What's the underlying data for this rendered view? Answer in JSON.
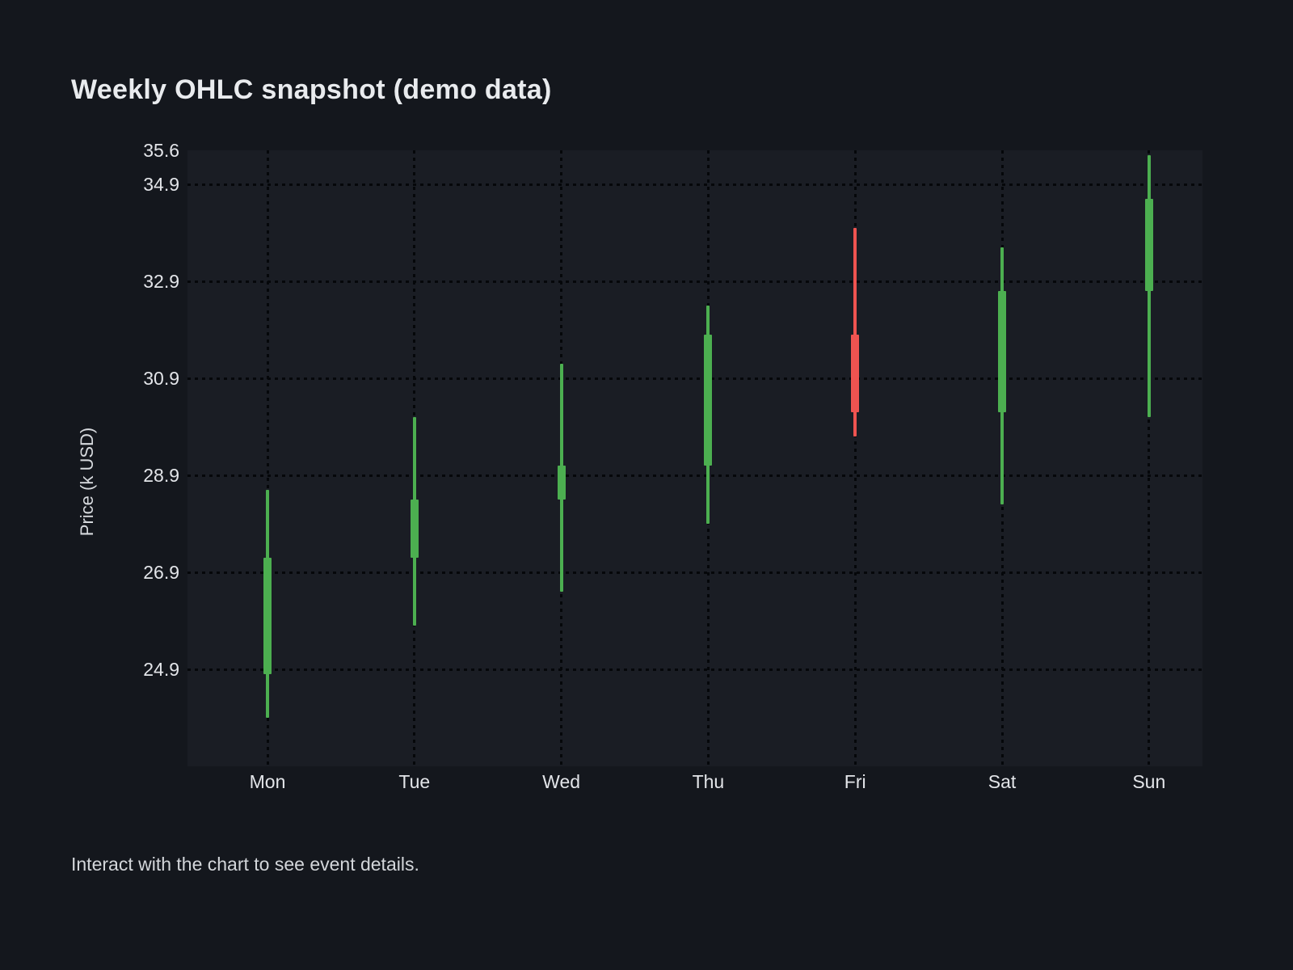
{
  "title": "Weekly OHLC snapshot (demo data)",
  "caption": "Interact with the chart to see event details.",
  "chart_data": {
    "type": "candlestick",
    "title": "Weekly OHLC snapshot (demo data)",
    "xlabel": "",
    "ylabel": "Price (k USD)",
    "categories": [
      "Mon",
      "Tue",
      "Wed",
      "Thu",
      "Fri",
      "Sat",
      "Sun"
    ],
    "series": [
      {
        "day": "Mon",
        "open": 24.8,
        "high": 28.6,
        "low": 23.9,
        "close": 27.2,
        "direction": "up"
      },
      {
        "day": "Tue",
        "open": 27.2,
        "high": 30.1,
        "low": 25.8,
        "close": 28.4,
        "direction": "up"
      },
      {
        "day": "Wed",
        "open": 28.4,
        "high": 31.2,
        "low": 26.5,
        "close": 29.1,
        "direction": "up"
      },
      {
        "day": "Thu",
        "open": 29.1,
        "high": 32.4,
        "low": 27.9,
        "close": 31.8,
        "direction": "up"
      },
      {
        "day": "Fri",
        "open": 31.8,
        "high": 34.0,
        "low": 29.7,
        "close": 30.2,
        "direction": "down"
      },
      {
        "day": "Sat",
        "open": 30.2,
        "high": 33.6,
        "low": 28.3,
        "close": 32.7,
        "direction": "up"
      },
      {
        "day": "Sun",
        "open": 32.7,
        "high": 35.5,
        "low": 30.1,
        "close": 34.6,
        "direction": "up"
      }
    ],
    "ylim": [
      22.9,
      35.6
    ],
    "yticks": [
      {
        "label": "35.6",
        "value": 35.6,
        "grid": false
      },
      {
        "label": "34.9",
        "value": 34.9,
        "grid": true
      },
      {
        "label": "32.9",
        "value": 32.9,
        "grid": true
      },
      {
        "label": "30.9",
        "value": 30.9,
        "grid": true
      },
      {
        "label": "28.9",
        "value": 28.9,
        "grid": true
      },
      {
        "label": "26.9",
        "value": 26.9,
        "grid": true
      },
      {
        "label": "24.9",
        "value": 24.9,
        "grid": true
      }
    ],
    "grid": "dotted-black-horizontal-and-vertical",
    "legend": "none",
    "colors": {
      "up": "#4caf50",
      "down": "#ef5350",
      "grid": "#05070a",
      "background": "#14171d",
      "plot_background": "#1a1d24",
      "text": "#e3e5e9"
    }
  }
}
